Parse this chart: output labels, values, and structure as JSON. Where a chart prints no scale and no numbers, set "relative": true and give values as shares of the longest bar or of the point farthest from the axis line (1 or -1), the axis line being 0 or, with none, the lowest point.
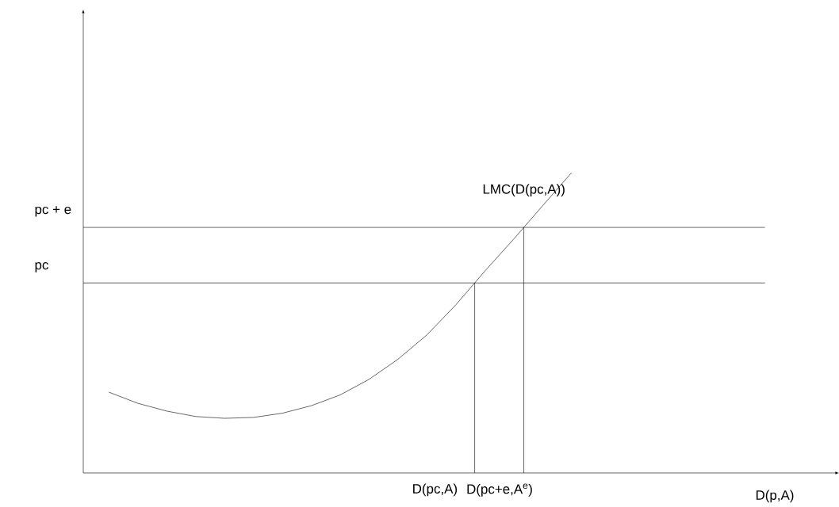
{
  "chart_data": {
    "type": "line",
    "relative": true,
    "categories": [
      null,
      null,
      null,
      null,
      null,
      null,
      null,
      null,
      null,
      null,
      null,
      null,
      null,
      null,
      null,
      null,
      null
    ],
    "series": [
      {
        "name": "LMC(D(pc,A))",
        "color": "#000000",
        "values": [
          0.269,
          0.232,
          0.206,
          0.188,
          0.182,
          0.185,
          0.199,
          0.224,
          0.26,
          0.312,
          0.379,
          0.46,
          0.56,
          0.672,
          0.779,
          0.89,
          1.0
        ]
      }
    ],
    "ref_lines": [
      {
        "axis": "y",
        "value": 0.633,
        "label": "pc"
      },
      {
        "axis": "y",
        "value": 0.818,
        "label": "pc + e"
      }
    ],
    "annotations": [
      "D(pc,A)",
      "D(pc+e,A$^{e}$)",
      "D(p,A)"
    ]
  }
}
